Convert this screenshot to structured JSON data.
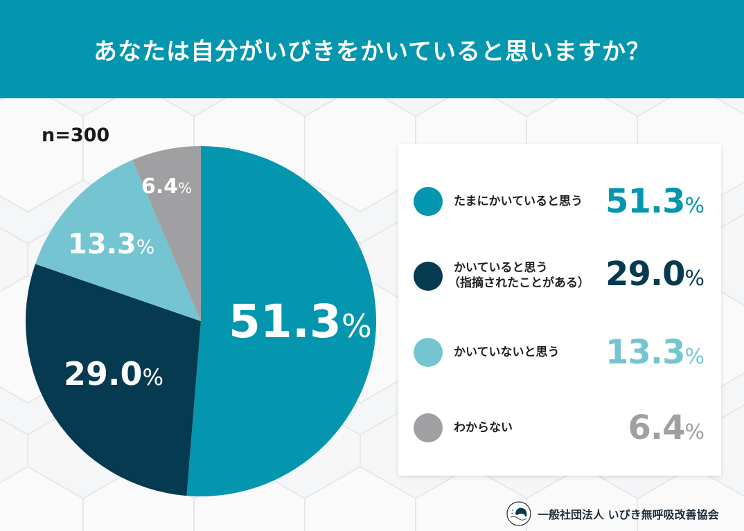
{
  "header": {
    "title": "あなたは自分がいびきをかいていると思いますか？"
  },
  "sample_size": "n=300",
  "colors": {
    "header_bg": "#0396ae",
    "slice_1": "#0396ae",
    "slice_2": "#053a50",
    "slice_3": "#74c5d1",
    "slice_4": "#a0a0a2"
  },
  "pie_labels": [
    {
      "value": "51.3",
      "unit": "%"
    },
    {
      "value": "29.0",
      "unit": "%"
    },
    {
      "value": "13.3",
      "unit": "%"
    },
    {
      "value": "6.4",
      "unit": "%"
    }
  ],
  "legend": {
    "items": [
      {
        "label": "たまにかいていると思う",
        "label_line2": "",
        "value": "51.3",
        "unit": "%",
        "color": "#0396ae"
      },
      {
        "label": "かいていると思う",
        "label_line2": "（指摘されたことがある）",
        "value": "29.0",
        "unit": "%",
        "color": "#053a50"
      },
      {
        "label": "かいていないと思う",
        "label_line2": "",
        "value": "13.3",
        "unit": "%",
        "color": "#74c5d1"
      },
      {
        "label": "わからない",
        "label_line2": "",
        "value": "6.4",
        "unit": "%",
        "color": "#a0a0a2"
      }
    ]
  },
  "footer": {
    "organization": "一般社団法人 いびき無呼吸改善協会",
    "logo_icon": "sleeping-face-icon"
  },
  "chart_data": {
    "type": "pie",
    "title": "あなたは自分がいびきをかいていると思いますか？",
    "subtitle": "n=300",
    "categories": [
      "たまにかいていると思う",
      "かいていると思う（指摘されたことがある）",
      "かいていないと思う",
      "わからない"
    ],
    "values": [
      51.3,
      29.0,
      13.3,
      6.4
    ],
    "unit": "%",
    "colors": [
      "#0396ae",
      "#053a50",
      "#74c5d1",
      "#a0a0a2"
    ],
    "start_angle": "12 o'clock",
    "direction": "clockwise",
    "legend_position": "right",
    "data_labels": true
  }
}
